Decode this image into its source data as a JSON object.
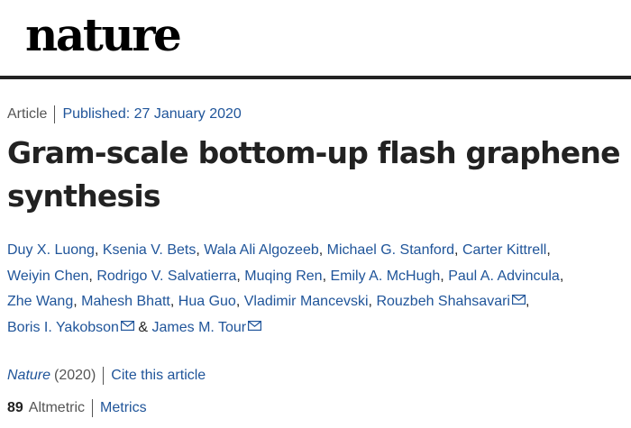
{
  "header": {
    "logo": "nature"
  },
  "article": {
    "type": "Article",
    "published": "Published: 27 January 2020",
    "title": "Gram-scale bottom-up flash graphene synthesis",
    "authors": [
      {
        "name": "Duy X. Luong",
        "sep": ", ",
        "mail": false
      },
      {
        "name": "Ksenia V. Bets",
        "sep": ", ",
        "mail": false
      },
      {
        "name": "Wala Ali Algozeeb",
        "sep": ", ",
        "mail": false
      },
      {
        "name": "Michael G. Stanford",
        "sep": ", ",
        "mail": false
      },
      {
        "name": "Carter Kittrell",
        "sep": ", ",
        "mail": false
      },
      {
        "name": "Weiyin Chen",
        "sep": ", ",
        "mail": false
      },
      {
        "name": "Rodrigo V. Salvatierra",
        "sep": ", ",
        "mail": false
      },
      {
        "name": "Muqing Ren",
        "sep": ", ",
        "mail": false
      },
      {
        "name": "Emily A. McHugh",
        "sep": ", ",
        "mail": false
      },
      {
        "name": "Paul A. Advincula",
        "sep": ", ",
        "mail": false
      },
      {
        "name": "Zhe Wang",
        "sep": ", ",
        "mail": false
      },
      {
        "name": "Mahesh Bhatt",
        "sep": ", ",
        "mail": false
      },
      {
        "name": "Hua Guo",
        "sep": ", ",
        "mail": false
      },
      {
        "name": "Vladimir Mancevski",
        "sep": ", ",
        "mail": false
      },
      {
        "name": "Rouzbeh Shahsavari",
        "sep": ", ",
        "mail": true
      },
      {
        "name": "Boris I. Yakobson",
        "sep": " & ",
        "mail": true
      },
      {
        "name": "James M. Tour",
        "sep": "",
        "mail": true
      }
    ],
    "mail_icon": "envelope-icon",
    "journal": "Nature",
    "year": "(2020)",
    "cite": "Cite this article",
    "altmetric_count": "89",
    "altmetric_label": "Altmetric",
    "metrics": "Metrics"
  },
  "colors": {
    "link": "#20559a",
    "text": "#222222",
    "muted": "#555555",
    "rule": "#222222"
  }
}
